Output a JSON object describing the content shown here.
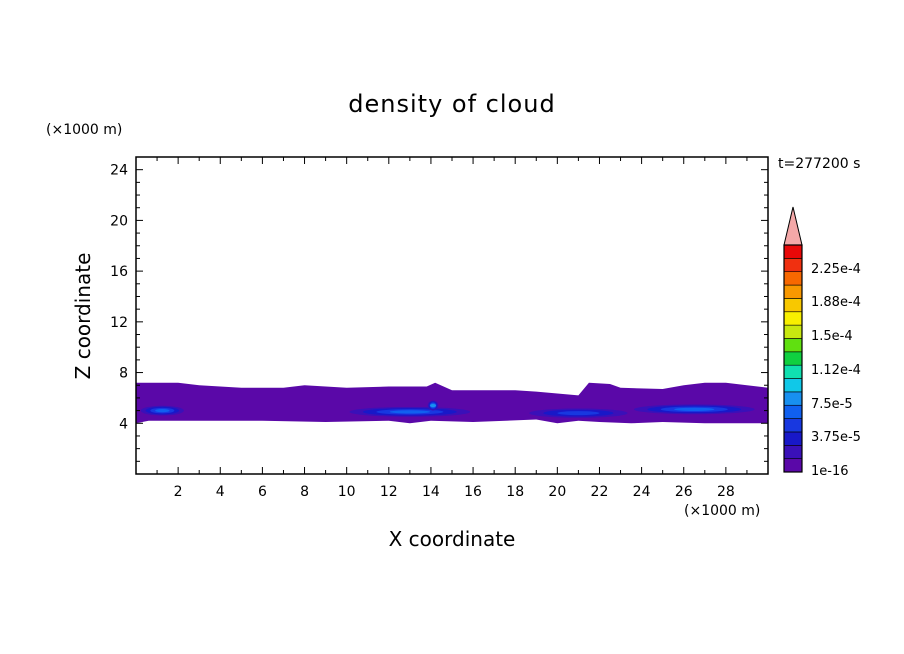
{
  "chart_data": {
    "type": "heatmap",
    "title": "density of cloud",
    "xlabel": "X coordinate",
    "ylabel": "Z coordinate",
    "x_unit": "(×1000 m)",
    "y_unit": "(×1000 m)",
    "time_label": "t=277200 s",
    "xlim": [
      0,
      30
    ],
    "ylim": [
      0,
      25
    ],
    "x_ticks": [
      "2",
      "4",
      "6",
      "8",
      "10",
      "12",
      "14",
      "16",
      "18",
      "20",
      "22",
      "24",
      "26",
      "28"
    ],
    "y_ticks": [
      "4",
      "8",
      "12",
      "16",
      "20",
      "24"
    ],
    "grid": false,
    "colorbar": {
      "labels": [
        "2.25e-4",
        "1.88e-4",
        "1.5e-4",
        "1.12e-4",
        "7.5e-5",
        "3.75e-5",
        "1e-16"
      ],
      "colors": [
        "#5a08a8",
        "#3a10b8",
        "#1818c8",
        "#1838e0",
        "#1060f0",
        "#1890f0",
        "#10c8e8",
        "#10e0b0",
        "#10d040",
        "#60e010",
        "#c8e810",
        "#f8f000",
        "#f8c800",
        "#f89800",
        "#f86800",
        "#f03010",
        "#e80808"
      ],
      "over_color": "#f4a8a8"
    },
    "cloud_layer": {
      "base": [
        [
          0,
          4.0
        ],
        [
          0.6,
          4.2
        ],
        [
          3,
          4.2
        ],
        [
          6,
          4.2
        ],
        [
          9,
          4.1
        ],
        [
          12,
          4.2
        ],
        [
          13,
          4.0
        ],
        [
          14,
          4.2
        ],
        [
          16,
          4.1
        ],
        [
          19,
          4.3
        ],
        [
          20,
          4.0
        ],
        [
          21,
          4.2
        ],
        [
          22,
          4.1
        ],
        [
          23.5,
          4.0
        ],
        [
          25,
          4.1
        ],
        [
          27,
          4.0
        ],
        [
          28,
          4.0
        ],
        [
          29,
          4.0
        ],
        [
          30,
          4.0
        ]
      ],
      "top": [
        [
          0,
          7.2
        ],
        [
          2,
          7.2
        ],
        [
          3,
          7.0
        ],
        [
          5,
          6.8
        ],
        [
          7,
          6.8
        ],
        [
          8,
          7.0
        ],
        [
          10,
          6.8
        ],
        [
          12,
          6.9
        ],
        [
          13.8,
          6.9
        ],
        [
          14.2,
          7.2
        ],
        [
          15,
          6.6
        ],
        [
          17,
          6.6
        ],
        [
          18,
          6.6
        ],
        [
          19,
          6.5
        ],
        [
          21,
          6.2
        ],
        [
          21.5,
          7.2
        ],
        [
          22.5,
          7.1
        ],
        [
          23,
          6.8
        ],
        [
          25,
          6.7
        ],
        [
          26,
          7.0
        ],
        [
          27,
          7.2
        ],
        [
          28,
          7.2
        ],
        [
          29,
          7.0
        ],
        [
          30,
          6.8
        ]
      ],
      "dense_cores": [
        {
          "x": [
            0,
            2.5
          ],
          "z": 5.0,
          "max_level": 5
        },
        {
          "x": [
            9.5,
            16.5
          ],
          "z": 4.9,
          "max_level": 5
        },
        {
          "x": [
            13.8,
            14.4
          ],
          "z": 5.4,
          "max_level": 6
        },
        {
          "x": [
            18,
            24
          ],
          "z": 4.8,
          "max_level": 4
        },
        {
          "x": [
            23,
            30
          ],
          "z": 5.1,
          "max_level": 5
        }
      ]
    }
  }
}
